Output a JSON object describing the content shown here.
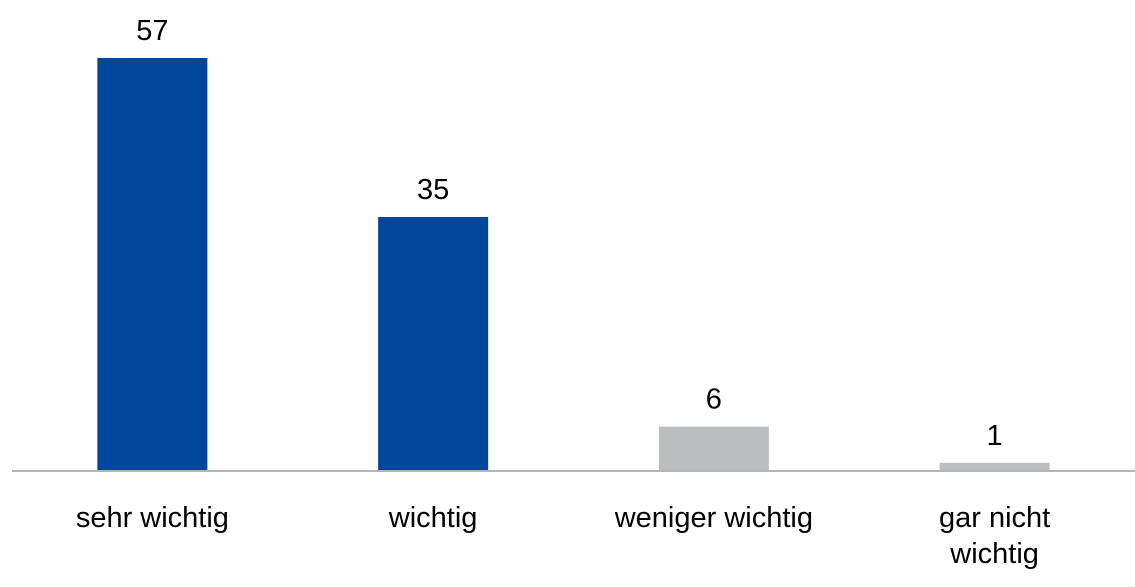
{
  "chart_data": {
    "type": "bar",
    "categories": [
      "sehr wichtig",
      "wichtig",
      "weniger wichtig",
      "gar nicht wichtig"
    ],
    "values": [
      57,
      35,
      6,
      1
    ],
    "colors": [
      "#00479b",
      "#00479b",
      "#bbbdbf",
      "#bbbdbf"
    ]
  }
}
